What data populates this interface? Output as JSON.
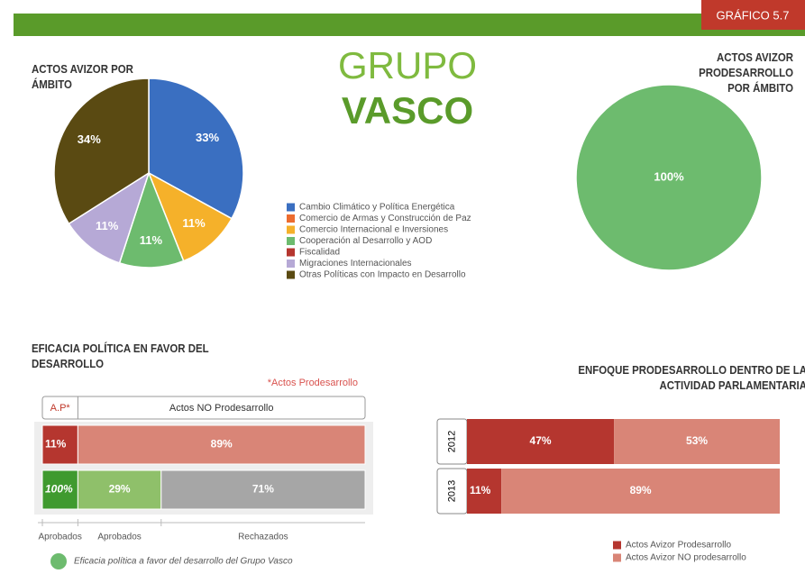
{
  "header": {
    "badge": "GRÁFICO 5.7",
    "title_top": "GRUPO",
    "title_bottom": "VASCO"
  },
  "chart_data": [
    {
      "type": "pie",
      "title": "ACTOS AVIZOR POR ÁMBITO",
      "categories": [
        "Cambio Climático y Política Energética",
        "Comercio de Armas y Construcción de Paz",
        "Comercio Internacional e Inversiones",
        "Cooperación al Desarrollo y AOD",
        "Fiscalidad",
        "Migraciones Internacionales",
        "Otras Políticas con Impacto en Desarrollo"
      ],
      "values": [
        33,
        0,
        11,
        11,
        0,
        11,
        34
      ],
      "value_labels": [
        "33%",
        null,
        "11%",
        "11%",
        null,
        "11%",
        "34%"
      ],
      "colors": [
        "#3a6fc1",
        "#ec6c2f",
        "#f5b12a",
        "#6dbb6e",
        "#b5362f",
        "#b6a9d6",
        "#5a4a12"
      ],
      "legend": true
    },
    {
      "type": "pie",
      "title": "ACTOS AVIZOR PRODESARROLLO POR ÁMBITO",
      "values": [
        100
      ],
      "value_labels": [
        "100%"
      ],
      "colors": [
        "#6dbb6e"
      ]
    },
    {
      "type": "table-bar",
      "title": "EFICACIA POLÍTICA EN FAVOR DEL DESARROLLO",
      "note": "*Actos Prodesarrollo",
      "columns": [
        "A.P*",
        "Actos NO Prodesarrollo"
      ],
      "rows": [
        {
          "values": [
            11,
            89
          ],
          "value_labels": [
            "11%",
            "89%"
          ],
          "colors": [
            "#b5362f",
            "#d98577"
          ]
        },
        {
          "values": [
            100,
            29,
            71
          ],
          "value_labels": [
            "100%",
            "29%",
            "71%"
          ],
          "colors": [
            "#3f9a2f",
            "#8fc06a",
            "#a6a6a6"
          ]
        }
      ],
      "segment_labels": [
        "Aprobados",
        "Aprobados",
        "Rechazados"
      ],
      "footnote": "Eficacia política a favor del desarrollo del Grupo Vasco"
    },
    {
      "type": "stacked-hbar",
      "title": "ENFOQUE PRODESARROLLO DENTRO DE LA ACTIVIDAD PARLAMENTARIA",
      "categories": [
        "2012",
        "2013"
      ],
      "series": [
        {
          "name": "Actos Avizor Prodesarrollo",
          "color": "#b5362f",
          "values": [
            47,
            11
          ],
          "value_labels": [
            "47%",
            "11%"
          ]
        },
        {
          "name": "Actos Avizor NO prodesarrollo",
          "color": "#d98577",
          "values": [
            53,
            89
          ],
          "value_labels": [
            "53%",
            "89%"
          ]
        }
      ],
      "xlim": [
        0,
        100
      ]
    }
  ]
}
